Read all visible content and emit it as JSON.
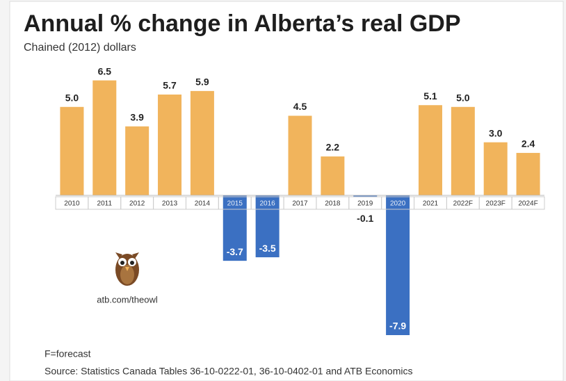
{
  "chart_data": {
    "type": "bar",
    "title": "Annual % change in Alberta’s real GDP",
    "subtitle": "Chained (2012) dollars",
    "categories": [
      "2010",
      "2011",
      "2012",
      "2013",
      "2014",
      "2015",
      "2016",
      "2017",
      "2018",
      "2019",
      "2020",
      "2021",
      "2022F",
      "2023F",
      "2024F"
    ],
    "values": [
      5.0,
      6.5,
      3.9,
      5.7,
      5.9,
      -3.7,
      -3.5,
      4.5,
      2.2,
      -0.1,
      -7.9,
      5.1,
      5.0,
      3.0,
      2.4
    ],
    "value_labels": [
      "5.0",
      "6.5",
      "3.9",
      "5.7",
      "5.9",
      "-3.7",
      "-3.5",
      "4.5",
      "2.2",
      "-0.1",
      "-7.9",
      "5.1",
      "5.0",
      "3.0",
      "2.4"
    ],
    "positive_color": "#f1b45c",
    "negative_color": "#3b70c2",
    "brand": "atb.com/theowl",
    "footnote": "F=forecast",
    "source": "Source: Statistics Canada Tables 36-10-0222-01, 36-10-0402-01 and ATB Economics"
  }
}
